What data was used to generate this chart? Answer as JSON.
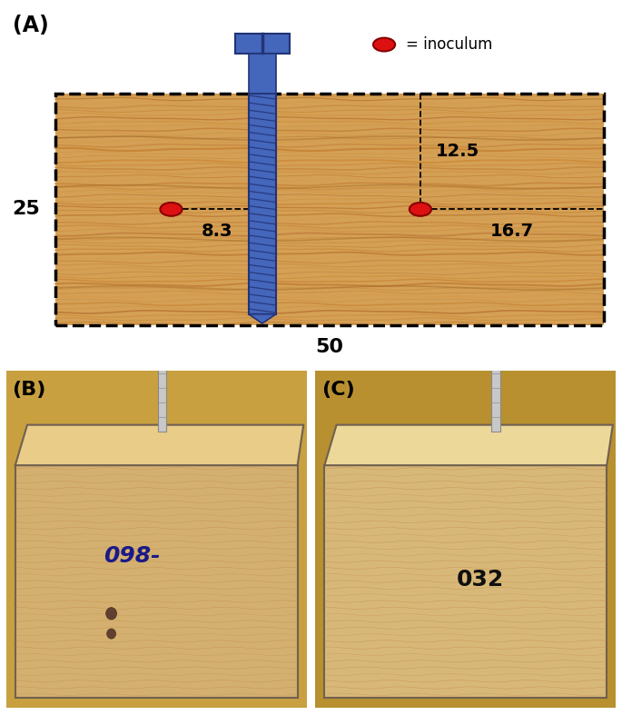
{
  "panel_A_label": "(A)",
  "panel_B_label": "(B)",
  "panel_C_label": "(C)",
  "dim_25": "25",
  "dim_50": "50",
  "dim_8_3": "8.3",
  "dim_12_5": "12.5",
  "dim_16_7": "16.7",
  "inoculum_label": "= inoculum",
  "wood_color_light": "#D4A055",
  "wood_color_mid": "#C8903A",
  "wood_color_dark": "#B87830",
  "screw_color": "#4466BB",
  "screw_dark": "#223377",
  "screw_mid": "#5577CC",
  "inoculum_color": "#DD1111",
  "bg_color": "#FFFFFF",
  "wood_grain_colors": [
    "#C07828",
    "#CC8833",
    "#B87030",
    "#D09040",
    "#C88030"
  ],
  "photo_B_bg": "#C8A860",
  "photo_C_bg": "#D4B870"
}
